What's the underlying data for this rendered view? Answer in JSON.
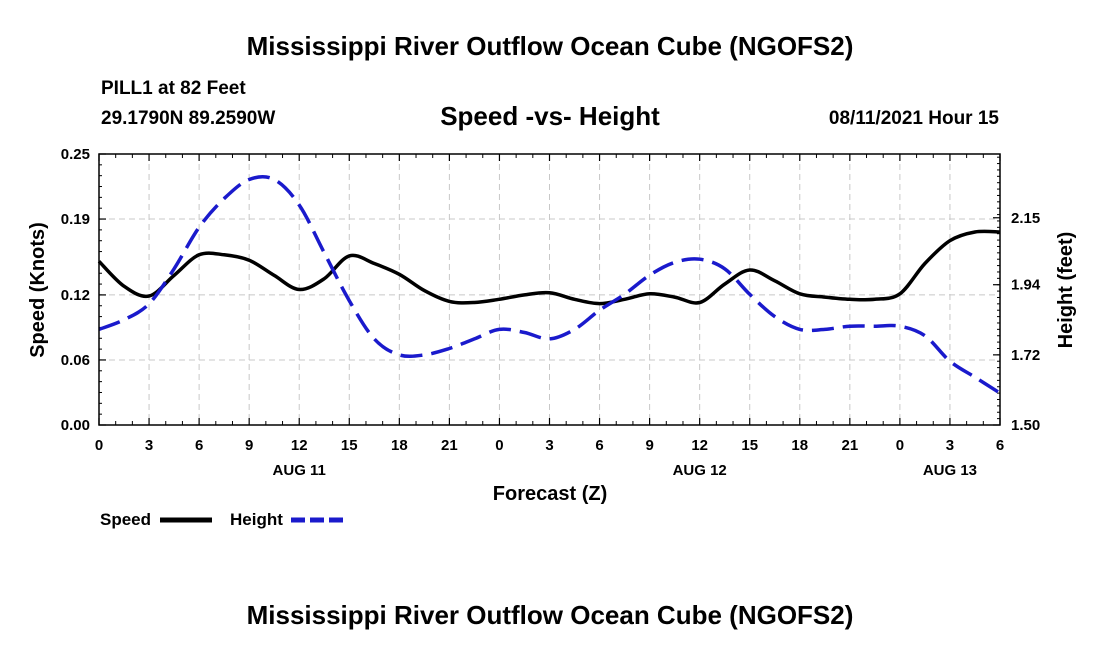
{
  "page": {
    "title_top": "Mississippi River Outflow Ocean Cube (NGOFS2)",
    "title_bottom": "Mississippi River Outflow Ocean Cube (NGOFS2)",
    "station": "PILL1 at 82 Feet",
    "coords": "29.1790N  89.2590W",
    "datetime": "08/11/2021 Hour 15"
  },
  "chart_data": {
    "type": "line",
    "title": "Speed -vs- Height",
    "xlabel": "Forecast (Z)",
    "ylabel_left": "Speed (Knots)",
    "ylabel_right": "Height (feet)",
    "x_range": [
      0,
      54
    ],
    "x_ticks": [
      0,
      3,
      6,
      9,
      12,
      15,
      18,
      21,
      24,
      27,
      30,
      33,
      36,
      39,
      42,
      45,
      48,
      51,
      54
    ],
    "x_tick_labels": [
      "0",
      "3",
      "6",
      "9",
      "12",
      "15",
      "18",
      "21",
      "0",
      "3",
      "6",
      "9",
      "12",
      "15",
      "18",
      "21",
      "0",
      "3",
      "6"
    ],
    "date_labels": [
      {
        "x": 12,
        "label": "AUG 11"
      },
      {
        "x": 36,
        "label": "AUG 12"
      },
      {
        "x": 51,
        "label": "AUG 13"
      }
    ],
    "y_left": {
      "range": [
        0.0,
        0.25
      ],
      "ticks": [
        0.0,
        0.06,
        0.12,
        0.19,
        0.25
      ],
      "tick_labels": [
        "0.00",
        "0.06",
        "0.12",
        "0.19",
        "0.25"
      ]
    },
    "y_right": {
      "range": [
        1.5,
        2.35
      ],
      "ticks": [
        1.5,
        1.72,
        1.94,
        2.15
      ],
      "tick_labels": [
        "1.50",
        "1.72",
        "1.94",
        "2.15"
      ]
    },
    "grid": true,
    "legend_position": "bottom-left",
    "series": [
      {
        "name": "Speed",
        "axis": "left",
        "color": "#000000",
        "dash": "solid",
        "x": [
          0,
          1.5,
          3,
          4.5,
          6,
          7.5,
          9,
          10.5,
          12,
          13.5,
          15,
          16.5,
          18,
          19.5,
          21,
          22.5,
          24,
          25.5,
          27,
          28.5,
          30,
          31.5,
          33,
          34.5,
          36,
          37.5,
          39,
          40.5,
          42,
          43.5,
          45,
          46.5,
          48,
          49.5,
          51,
          52.5,
          54
        ],
        "values": [
          0.151,
          0.128,
          0.119,
          0.138,
          0.157,
          0.157,
          0.152,
          0.138,
          0.125,
          0.135,
          0.156,
          0.149,
          0.139,
          0.124,
          0.114,
          0.113,
          0.116,
          0.12,
          0.122,
          0.116,
          0.112,
          0.116,
          0.121,
          0.118,
          0.113,
          0.13,
          0.143,
          0.133,
          0.121,
          0.118,
          0.116,
          0.116,
          0.121,
          0.149,
          0.17,
          0.178,
          0.178
        ]
      },
      {
        "name": "Height",
        "axis": "right",
        "color": "#1a1acc",
        "dash": "dashed",
        "x": [
          0,
          1.5,
          3,
          4.5,
          6,
          7.5,
          9,
          10.5,
          12,
          13.5,
          15,
          16.5,
          18,
          19.5,
          21,
          22.5,
          24,
          25.5,
          27,
          28.5,
          30,
          31.5,
          33,
          34.5,
          36,
          37.5,
          39,
          40.5,
          42,
          43.5,
          45,
          46.5,
          48,
          49.5,
          51,
          52.5,
          54
        ],
        "values": [
          1.8,
          1.83,
          1.88,
          1.99,
          2.12,
          2.21,
          2.27,
          2.27,
          2.19,
          2.04,
          1.89,
          1.77,
          1.72,
          1.72,
          1.74,
          1.77,
          1.8,
          1.79,
          1.77,
          1.8,
          1.86,
          1.91,
          1.97,
          2.01,
          2.02,
          1.99,
          1.91,
          1.84,
          1.8,
          1.8,
          1.81,
          1.81,
          1.81,
          1.78,
          1.7,
          1.65,
          1.6
        ]
      }
    ]
  }
}
